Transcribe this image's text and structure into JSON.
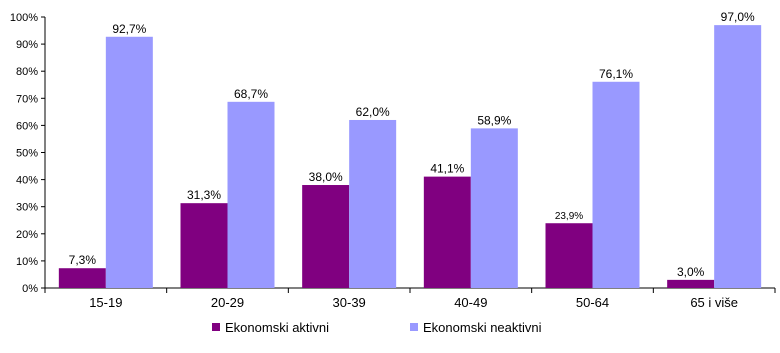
{
  "chart_data": {
    "type": "bar",
    "categories": [
      "15-19",
      "20-29",
      "30-39",
      "40-49",
      "50-64",
      "65 i više"
    ],
    "series": [
      {
        "name": "Ekonomski aktivni",
        "values": [
          7.3,
          31.3,
          38.0,
          41.1,
          23.9,
          3.0
        ],
        "labels": [
          "7,3%",
          "31,3%",
          "38,0%",
          "41,1%",
          "23,9%",
          "3,0%"
        ],
        "color": "#800080"
      },
      {
        "name": "Ekonomski neaktivni",
        "values": [
          92.7,
          68.7,
          62.0,
          58.9,
          76.1,
          97.0
        ],
        "labels": [
          "92,7%",
          "68,7%",
          "62,0%",
          "58,9%",
          "76,1%",
          "97,0%"
        ],
        "color": "#9999ff"
      }
    ],
    "y_ticks": [
      "0%",
      "10%",
      "20%",
      "30%",
      "40%",
      "50%",
      "60%",
      "70%",
      "80%",
      "90%",
      "100%"
    ],
    "ylim": [
      0,
      100
    ],
    "grid": false,
    "legend_position": "bottom"
  }
}
